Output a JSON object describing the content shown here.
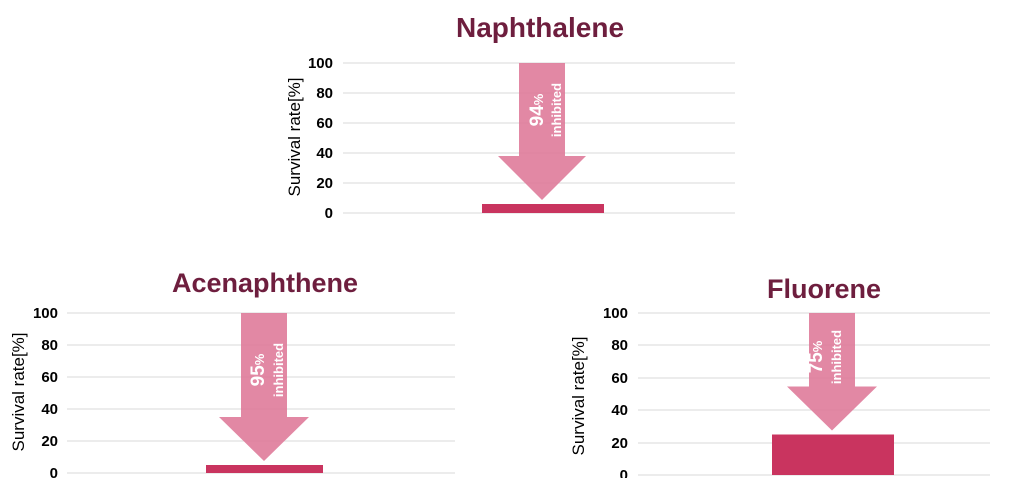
{
  "colors": {
    "bar": "#c9345f",
    "arrow": "#e07e9c",
    "title": "#6e1e3e",
    "grid": "#d9d9d9"
  },
  "chart_data": [
    {
      "type": "bar",
      "title": "Naphthalene",
      "ylabel": "Survival rate[%]",
      "ylim": [
        0,
        100
      ],
      "yticks": [
        "100",
        "80",
        "60",
        "40",
        "20",
        "0"
      ],
      "values": [
        6
      ],
      "annotation": {
        "value": "94",
        "unit": "%",
        "text": "inhibited"
      },
      "grid": true
    },
    {
      "type": "bar",
      "title": "Acenaphthene",
      "ylabel": "Survival rate[%]",
      "ylim": [
        0,
        100
      ],
      "yticks": [
        "100",
        "80",
        "60",
        "40",
        "20",
        "0"
      ],
      "values": [
        5
      ],
      "annotation": {
        "value": "95",
        "unit": "%",
        "text": "inhibited"
      },
      "grid": true
    },
    {
      "type": "bar",
      "title": "Fluorene",
      "ylabel": "Survival rate[%]",
      "ylim": [
        0,
        100
      ],
      "yticks": [
        "100",
        "80",
        "60",
        "40",
        "20",
        "0"
      ],
      "values": [
        25
      ],
      "annotation": {
        "value": "75",
        "unit": "%",
        "text": "inhibited"
      },
      "grid": true
    }
  ]
}
